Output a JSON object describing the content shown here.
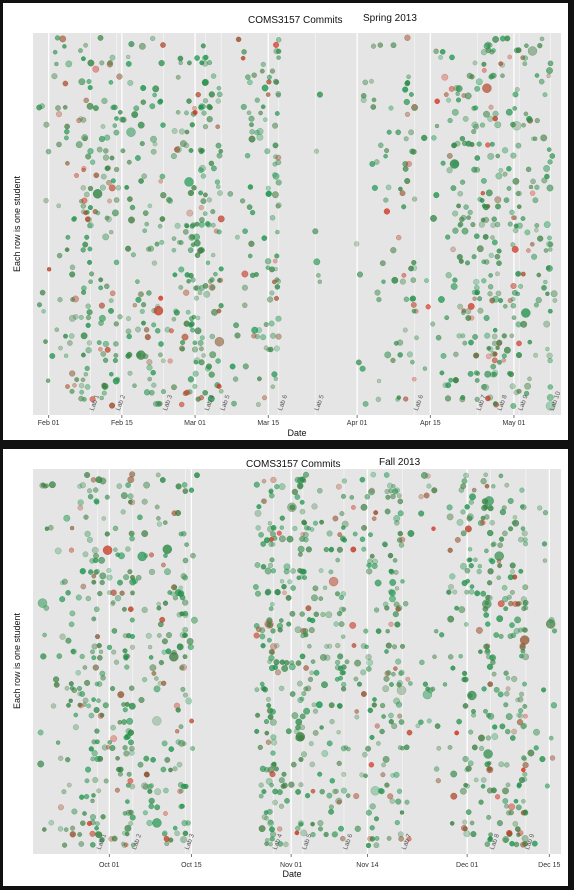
{
  "chart_data": [
    {
      "type": "scatter",
      "title": "COMS3157 Commits",
      "subtitle": "Spring 2013",
      "xlabel": "Date",
      "ylabel": "Each row is one student",
      "x_ticks": [
        "Feb 01",
        "Feb 15",
        "Mar 01",
        "Mar 15",
        "Apr 01",
        "Apr 15",
        "May 01"
      ],
      "x_tick_dates": [
        "2013-02-01",
        "2013-02-15",
        "2013-03-01",
        "2013-03-15",
        "2013-04-01",
        "2013-04-15",
        "2013-05-01"
      ],
      "xlim": [
        "2013-01-29",
        "2013-05-10"
      ],
      "lab_deadlines": [
        {
          "label": "Lab 1",
          "date": "2013-02-09"
        },
        {
          "label": "Lab 2",
          "date": "2013-02-14"
        },
        {
          "label": "Lab 3",
          "date": "2013-02-23"
        },
        {
          "label": "Lab 4",
          "date": "2013-03-03"
        },
        {
          "label": "Lab 5",
          "date": "2013-03-06"
        },
        {
          "label": "Lab 6",
          "date": "2013-03-17"
        },
        {
          "label": "Lab 5",
          "date": "2013-03-24"
        },
        {
          "label": "Lab 6",
          "date": "2013-04-12"
        },
        {
          "label": "Lab 7",
          "date": "2013-04-24"
        },
        {
          "label": "Lab 8",
          "date": "2013-04-28"
        },
        {
          "label": "Lab 9",
          "date": "2013-05-02"
        },
        {
          "label": "Lab 10",
          "date": "2013-05-08"
        }
      ],
      "gaps": [
        [
          "2013-03-17",
          "2013-03-24"
        ],
        [
          "2013-03-25",
          "2013-03-31"
        ]
      ],
      "students": 60,
      "point_density": 1000,
      "grid": true,
      "colors": {
        "panel": "#e5e5e5",
        "grid": "#ffffff",
        "low": "#1a9850",
        "high": "#d7301f"
      }
    },
    {
      "type": "scatter",
      "title": "COMS3157 Commits",
      "subtitle": "Fall 2013",
      "xlabel": "Date",
      "ylabel": "Each row is one student",
      "x_ticks": [
        "Oct 01",
        "Oct 15",
        "Nov 01",
        "Nov 14",
        "Dec 01",
        "Dec 15"
      ],
      "x_tick_dates": [
        "2013-10-01",
        "2013-10-15",
        "2013-11-01",
        "2013-11-14",
        "2013-12-01",
        "2013-12-15"
      ],
      "xlim": [
        "2013-09-18",
        "2013-12-17"
      ],
      "lab_deadlines": [
        {
          "label": "Lab 1",
          "date": "2013-09-29"
        },
        {
          "label": "Lab 2",
          "date": "2013-10-05"
        },
        {
          "label": "Lab 3",
          "date": "2013-10-14"
        },
        {
          "label": "Lab 4",
          "date": "2013-10-29"
        },
        {
          "label": "Lab 5",
          "date": "2013-11-03"
        },
        {
          "label": "Lab 6",
          "date": "2013-11-10"
        },
        {
          "label": "Lab 7",
          "date": "2013-11-20"
        },
        {
          "label": "Lab 8",
          "date": "2013-12-05"
        },
        {
          "label": "Lab 9",
          "date": "2013-12-11"
        }
      ],
      "gaps": [
        [
          "2013-10-16",
          "2013-10-26"
        ]
      ],
      "students": 70,
      "point_density": 1200,
      "grid": true,
      "colors": {
        "panel": "#e5e5e5",
        "grid": "#ffffff",
        "low": "#1a9850",
        "high": "#d7301f"
      }
    }
  ]
}
